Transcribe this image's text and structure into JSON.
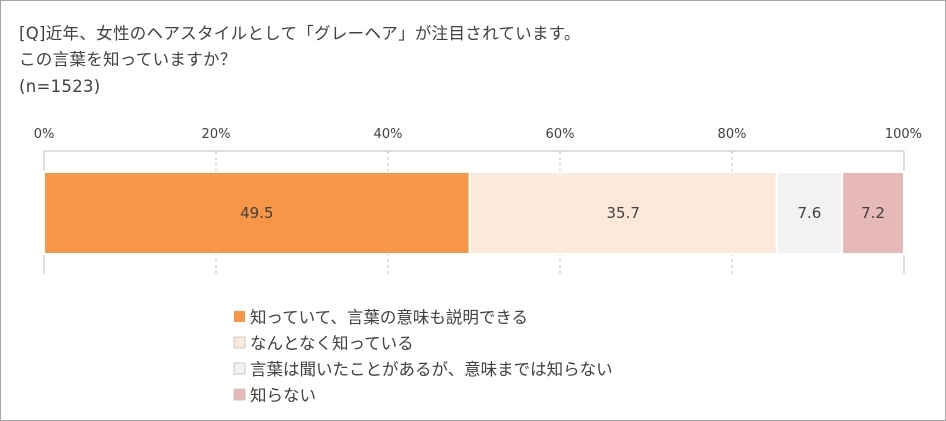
{
  "title_lines": [
    "[Q]近年、女性のヘアスタイルとして「グレーヘア」が注目されています。",
    "この言葉を知っていますか？",
    "(n=1523)"
  ],
  "chart_data": {
    "type": "bar",
    "orientation": "horizontal",
    "stacked": true,
    "categories": [
      ""
    ],
    "series": [
      {
        "name": "知っていて、言葉の意味も説明できる",
        "values": [
          49.5
        ],
        "label": "49.5",
        "color": "#f79646"
      },
      {
        "name": "なんとなく知っている",
        "values": [
          35.7
        ],
        "label": "35.7",
        "color": "#fde9d9"
      },
      {
        "name": "言葉は聞いたことがあるが、意味までは知らない",
        "values": [
          7.6
        ],
        "label": "7.6",
        "color": "#f2f2f2"
      },
      {
        "name": "知らない",
        "values": [
          7.2
        ],
        "label": "7.2",
        "color": "#e6b9b8"
      }
    ],
    "xlim": [
      0,
      100
    ],
    "ticks": [
      "0%",
      "20%",
      "40%",
      "60%",
      "80%",
      "100%"
    ],
    "grid": true,
    "legend_position": "bottom"
  }
}
